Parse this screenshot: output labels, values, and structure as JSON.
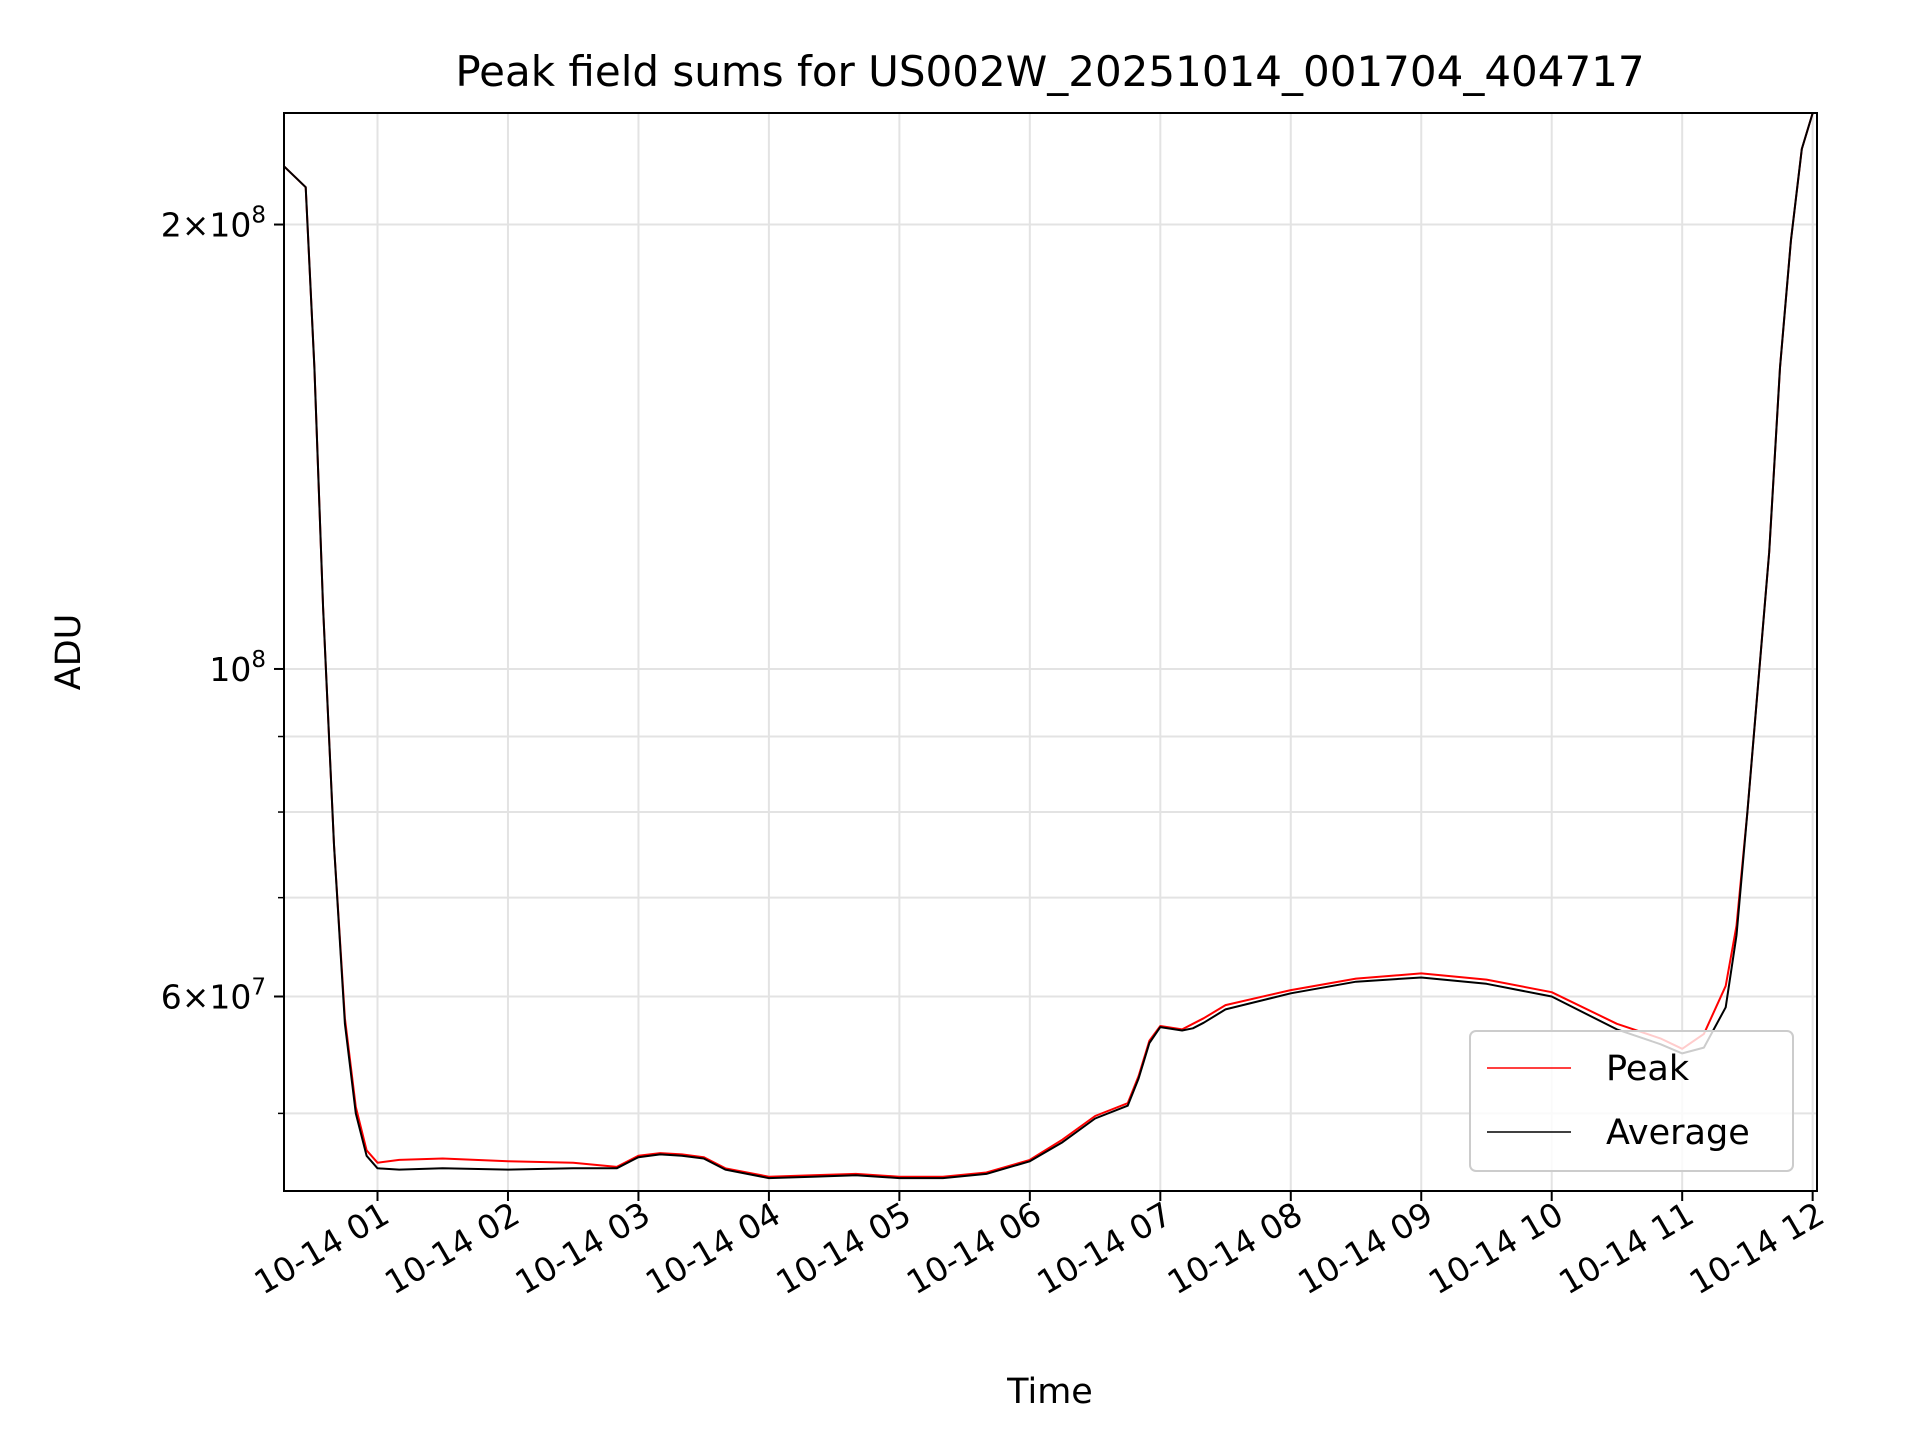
{
  "chart_data": {
    "type": "line",
    "title": "Peak field sums for US002W_20251014_001704_404717",
    "xlabel": "Time",
    "ylabel": "ADU",
    "yscale": "log",
    "xlim": [
      "2025-10-14T00:17",
      "2025-10-14T12:02"
    ],
    "ylim": [
      44300000,
      238000000
    ],
    "grid": true,
    "legend_position": "lower right",
    "x_ticks": [
      {
        "t": "2025-10-14T01:00",
        "label": "10-14 01"
      },
      {
        "t": "2025-10-14T02:00",
        "label": "10-14 02"
      },
      {
        "t": "2025-10-14T03:00",
        "label": "10-14 03"
      },
      {
        "t": "2025-10-14T04:00",
        "label": "10-14 04"
      },
      {
        "t": "2025-10-14T05:00",
        "label": "10-14 05"
      },
      {
        "t": "2025-10-14T06:00",
        "label": "10-14 06"
      },
      {
        "t": "2025-10-14T07:00",
        "label": "10-14 07"
      },
      {
        "t": "2025-10-14T08:00",
        "label": "10-14 08"
      },
      {
        "t": "2025-10-14T09:00",
        "label": "10-14 09"
      },
      {
        "t": "2025-10-14T10:00",
        "label": "10-14 10"
      },
      {
        "t": "2025-10-14T11:00",
        "label": "10-14 11"
      },
      {
        "t": "2025-10-14T12:00",
        "label": "10-14 12"
      }
    ],
    "y_major_ticks": [
      {
        "v": 60000000,
        "base": "6",
        "exp": "7"
      },
      {
        "v": 100000000,
        "base": "",
        "exp": "8"
      },
      {
        "v": 200000000,
        "base": "2",
        "exp": "8"
      }
    ],
    "y_minor_ticks": [
      50000000,
      70000000,
      80000000,
      90000000
    ],
    "series": [
      {
        "name": "Peak",
        "color": "#ff0000",
        "x": [
          "2025-10-14T00:17",
          "2025-10-14T00:27",
          "2025-10-14T00:31",
          "2025-10-14T00:35",
          "2025-10-14T00:40",
          "2025-10-14T00:45",
          "2025-10-14T00:50",
          "2025-10-14T00:55",
          "2025-10-14T01:00",
          "2025-10-14T01:10",
          "2025-10-14T01:30",
          "2025-10-14T02:00",
          "2025-10-14T02:30",
          "2025-10-14T02:50",
          "2025-10-14T03:00",
          "2025-10-14T03:10",
          "2025-10-14T03:20",
          "2025-10-14T03:30",
          "2025-10-14T03:40",
          "2025-10-14T04:00",
          "2025-10-14T04:20",
          "2025-10-14T04:40",
          "2025-10-14T05:00",
          "2025-10-14T05:20",
          "2025-10-14T05:40",
          "2025-10-14T06:00",
          "2025-10-14T06:15",
          "2025-10-14T06:30",
          "2025-10-14T06:45",
          "2025-10-14T06:50",
          "2025-10-14T06:55",
          "2025-10-14T07:00",
          "2025-10-14T07:10",
          "2025-10-14T07:15",
          "2025-10-14T07:20",
          "2025-10-14T07:30",
          "2025-10-14T08:00",
          "2025-10-14T08:30",
          "2025-10-14T09:00",
          "2025-10-14T09:30",
          "2025-10-14T10:00",
          "2025-10-14T10:30",
          "2025-10-14T10:50",
          "2025-10-14T11:00",
          "2025-10-14T11:10",
          "2025-10-14T11:20",
          "2025-10-14T11:25",
          "2025-10-14T11:30",
          "2025-10-14T11:40",
          "2025-10-14T11:45",
          "2025-10-14T11:50",
          "2025-10-14T11:55",
          "2025-10-14T12:00"
        ],
        "y": [
          219000000,
          212000000,
          160000000,
          110000000,
          76000000,
          58000000,
          50500000,
          47200000,
          46300000,
          46500000,
          46600000,
          46400000,
          46300000,
          46000000,
          46800000,
          47000000,
          46900000,
          46700000,
          45900000,
          45300000,
          45400000,
          45500000,
          45300000,
          45300000,
          45600000,
          46500000,
          48000000,
          49800000,
          50800000,
          53000000,
          56000000,
          57300000,
          57000000,
          57500000,
          58000000,
          59200000,
          60600000,
          61700000,
          62200000,
          61600000,
          60400000,
          57500000,
          56200000,
          55300000,
          56600000,
          61000000,
          67000000,
          80000000,
          120000000,
          160000000,
          195000000,
          225000000,
          238000000
        ]
      },
      {
        "name": "Average",
        "color": "#000000",
        "x": [
          "2025-10-14T00:17",
          "2025-10-14T00:27",
          "2025-10-14T00:31",
          "2025-10-14T00:35",
          "2025-10-14T00:40",
          "2025-10-14T00:45",
          "2025-10-14T00:50",
          "2025-10-14T00:55",
          "2025-10-14T01:00",
          "2025-10-14T01:10",
          "2025-10-14T01:30",
          "2025-10-14T02:00",
          "2025-10-14T02:30",
          "2025-10-14T02:50",
          "2025-10-14T03:00",
          "2025-10-14T03:10",
          "2025-10-14T03:20",
          "2025-10-14T03:30",
          "2025-10-14T03:40",
          "2025-10-14T04:00",
          "2025-10-14T04:20",
          "2025-10-14T04:40",
          "2025-10-14T05:00",
          "2025-10-14T05:20",
          "2025-10-14T05:40",
          "2025-10-14T06:00",
          "2025-10-14T06:15",
          "2025-10-14T06:30",
          "2025-10-14T06:45",
          "2025-10-14T06:50",
          "2025-10-14T06:55",
          "2025-10-14T07:00",
          "2025-10-14T07:10",
          "2025-10-14T07:15",
          "2025-10-14T07:20",
          "2025-10-14T07:30",
          "2025-10-14T08:00",
          "2025-10-14T08:30",
          "2025-10-14T09:00",
          "2025-10-14T09:30",
          "2025-10-14T10:00",
          "2025-10-14T10:30",
          "2025-10-14T10:50",
          "2025-10-14T11:00",
          "2025-10-14T11:10",
          "2025-10-14T11:20",
          "2025-10-14T11:25",
          "2025-10-14T11:30",
          "2025-10-14T11:40",
          "2025-10-14T11:45",
          "2025-10-14T11:50",
          "2025-10-14T11:55",
          "2025-10-14T12:00"
        ],
        "y": [
          219000000,
          212000000,
          160000000,
          110000000,
          76000000,
          57500000,
          50000000,
          46800000,
          45900000,
          45800000,
          45900000,
          45800000,
          45900000,
          45900000,
          46700000,
          46900000,
          46800000,
          46600000,
          45800000,
          45200000,
          45300000,
          45400000,
          45200000,
          45200000,
          45500000,
          46400000,
          47800000,
          49600000,
          50600000,
          52800000,
          55800000,
          57200000,
          56900000,
          57100000,
          57600000,
          58800000,
          60300000,
          61400000,
          61800000,
          61200000,
          60000000,
          57000000,
          55700000,
          54900000,
          55400000,
          59000000,
          66000000,
          80000000,
          120000000,
          160000000,
          195000000,
          225000000,
          238000000
        ]
      }
    ]
  }
}
